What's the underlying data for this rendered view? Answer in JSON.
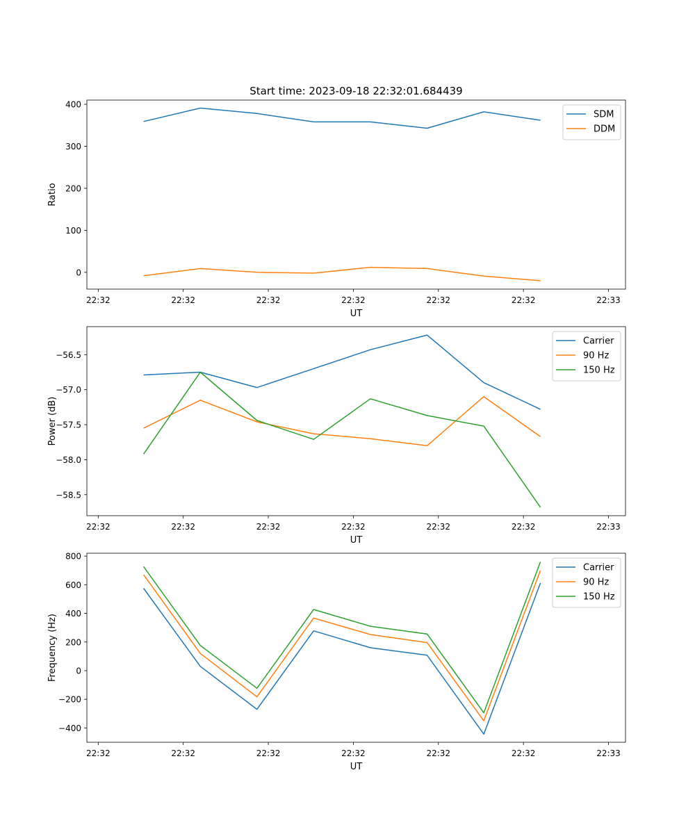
{
  "figure": {
    "title": "Start time: 2023-09-18 22:32:01.684439"
  },
  "colors": {
    "blue": "#1f77b4",
    "orange": "#ff7f0e",
    "green": "#2ca02c"
  },
  "chart_data": [
    {
      "type": "line",
      "title": "Start time: 2023-09-18 22:32:01.684439",
      "xlabel": "UT",
      "ylabel": "Ratio",
      "x": [
        1,
        2,
        3,
        4,
        5,
        6,
        7,
        8
      ],
      "xlim": [
        0,
        9.5
      ],
      "x_ticks": [
        {
          "value": 0.2,
          "label": "22:32"
        },
        {
          "value": 1.7,
          "label": "22:32"
        },
        {
          "value": 3.2,
          "label": "22:32"
        },
        {
          "value": 4.7,
          "label": "22:32"
        },
        {
          "value": 6.2,
          "label": "22:32"
        },
        {
          "value": 7.7,
          "label": "22:32"
        },
        {
          "value": 9.2,
          "label": "22:33"
        }
      ],
      "ylim": [
        -40,
        410
      ],
      "y_ticks": [
        0,
        100,
        200,
        300,
        400
      ],
      "legend": "top-right",
      "series": [
        {
          "name": "SDM",
          "color": "#1f77b4",
          "values": [
            359,
            391,
            378,
            358,
            358,
            343,
            382,
            362
          ]
        },
        {
          "name": "DDM",
          "color": "#ff7f0e",
          "values": [
            -8,
            9,
            0,
            -2,
            12,
            9,
            -9,
            -20
          ]
        }
      ]
    },
    {
      "type": "line",
      "xlabel": "UT",
      "ylabel": "Power (dB)",
      "x": [
        1,
        2,
        3,
        4,
        5,
        6,
        7,
        8
      ],
      "xlim": [
        0,
        9.5
      ],
      "x_ticks": [
        {
          "value": 0.2,
          "label": "22:32"
        },
        {
          "value": 1.7,
          "label": "22:32"
        },
        {
          "value": 3.2,
          "label": "22:32"
        },
        {
          "value": 4.7,
          "label": "22:32"
        },
        {
          "value": 6.2,
          "label": "22:32"
        },
        {
          "value": 7.7,
          "label": "22:32"
        },
        {
          "value": 9.2,
          "label": "22:33"
        }
      ],
      "ylim": [
        -58.8,
        -56.1
      ],
      "y_ticks": [
        -58.5,
        -58.0,
        -57.5,
        -57.0,
        -56.5
      ],
      "y_tick_labels": [
        "−58.5",
        "−58.0",
        "−57.5",
        "−57.0",
        "−56.5"
      ],
      "legend": "top-right",
      "series": [
        {
          "name": "Carrier",
          "color": "#1f77b4",
          "values": [
            -56.79,
            -56.75,
            -56.97,
            -56.7,
            -56.43,
            -56.22,
            -56.9,
            -57.28
          ]
        },
        {
          "name": "90 Hz",
          "color": "#ff7f0e",
          "values": [
            -57.55,
            -57.15,
            -57.46,
            -57.63,
            -57.7,
            -57.8,
            -57.1,
            -57.67
          ]
        },
        {
          "name": "150 Hz",
          "color": "#2ca02c",
          "values": [
            -57.92,
            -56.75,
            -57.44,
            -57.71,
            -57.13,
            -57.37,
            -57.52,
            -58.68
          ]
        }
      ]
    },
    {
      "type": "line",
      "xlabel": "UT",
      "ylabel": "Frequency (Hz)",
      "x": [
        1,
        2,
        3,
        4,
        5,
        6,
        7,
        8
      ],
      "xlim": [
        0,
        9.5
      ],
      "x_ticks": [
        {
          "value": 0.2,
          "label": "22:32"
        },
        {
          "value": 1.7,
          "label": "22:32"
        },
        {
          "value": 3.2,
          "label": "22:32"
        },
        {
          "value": 4.7,
          "label": "22:32"
        },
        {
          "value": 6.2,
          "label": "22:32"
        },
        {
          "value": 7.7,
          "label": "22:32"
        },
        {
          "value": 9.2,
          "label": "22:33"
        }
      ],
      "ylim": [
        -500,
        820
      ],
      "y_ticks": [
        -400,
        -200,
        0,
        200,
        400,
        600,
        800
      ],
      "y_tick_labels": [
        "−400",
        "−200",
        "0",
        "200",
        "400",
        "600",
        "800"
      ],
      "legend": "top-right",
      "series": [
        {
          "name": "Carrier",
          "color": "#1f77b4",
          "values": [
            575,
            30,
            -270,
            278,
            160,
            108,
            -443,
            612
          ]
        },
        {
          "name": "90 Hz",
          "color": "#ff7f0e",
          "values": [
            670,
            120,
            -183,
            367,
            252,
            196,
            -350,
            700
          ]
        },
        {
          "name": "150 Hz",
          "color": "#2ca02c",
          "values": [
            727,
            176,
            -123,
            427,
            310,
            256,
            -294,
            760
          ]
        }
      ]
    }
  ]
}
